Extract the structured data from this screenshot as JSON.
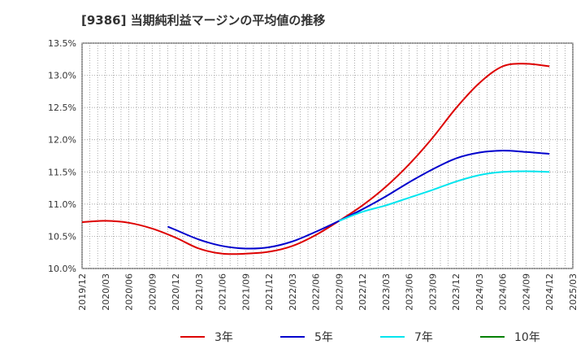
{
  "title": "[9386]  当期純利益マージンの平均値の推移",
  "chart_data": {
    "type": "line",
    "title": "[9386]  当期純利益マージンの平均値の推移",
    "xlabel": "",
    "ylabel": "",
    "ylim": [
      10.0,
      13.5
    ],
    "y_ticks": [
      "10.0%",
      "10.5%",
      "11.0%",
      "11.5%",
      "12.0%",
      "12.5%",
      "13.0%",
      "13.5%"
    ],
    "x_ticks": [
      "2019/12",
      "2020/03",
      "2020/06",
      "2020/09",
      "2020/12",
      "2021/03",
      "2021/06",
      "2021/09",
      "2021/12",
      "2022/03",
      "2022/06",
      "2022/09",
      "2022/12",
      "2023/03",
      "2023/06",
      "2023/09",
      "2023/12",
      "2024/03",
      "2024/06",
      "2024/09",
      "2024/12",
      "2025/03"
    ],
    "grid": true,
    "legend_position": "bottom",
    "series": [
      {
        "name": "3年",
        "color": "#dd0000",
        "points": [
          [
            "2019/12",
            10.72
          ],
          [
            "2020/03",
            10.74
          ],
          [
            "2020/06",
            10.71
          ],
          [
            "2020/09",
            10.62
          ],
          [
            "2020/12",
            10.48
          ],
          [
            "2021/03",
            10.31
          ],
          [
            "2021/06",
            10.23
          ],
          [
            "2021/09",
            10.23
          ],
          [
            "2021/12",
            10.26
          ],
          [
            "2022/03",
            10.35
          ],
          [
            "2022/06",
            10.52
          ],
          [
            "2022/09",
            10.74
          ],
          [
            "2022/12",
            10.98
          ],
          [
            "2023/03",
            11.27
          ],
          [
            "2023/06",
            11.62
          ],
          [
            "2023/09",
            12.03
          ],
          [
            "2023/12",
            12.49
          ],
          [
            "2024/03",
            12.88
          ],
          [
            "2024/06",
            13.14
          ],
          [
            "2024/09",
            13.18
          ],
          [
            "2024/12",
            13.14
          ]
        ]
      },
      {
        "name": "5年",
        "color": "#0000cc",
        "points": [
          [
            "2020/11",
            10.65
          ],
          [
            "2020/12",
            10.6
          ],
          [
            "2021/03",
            10.45
          ],
          [
            "2021/06",
            10.35
          ],
          [
            "2021/09",
            10.31
          ],
          [
            "2021/12",
            10.33
          ],
          [
            "2022/03",
            10.42
          ],
          [
            "2022/06",
            10.57
          ],
          [
            "2022/09",
            10.74
          ],
          [
            "2022/12",
            10.92
          ],
          [
            "2023/03",
            11.12
          ],
          [
            "2023/06",
            11.34
          ],
          [
            "2023/09",
            11.54
          ],
          [
            "2023/12",
            11.71
          ],
          [
            "2024/03",
            11.8
          ],
          [
            "2024/06",
            11.83
          ],
          [
            "2024/09",
            11.81
          ],
          [
            "2024/12",
            11.78
          ]
        ]
      },
      {
        "name": "7年",
        "color": "#00e5ee",
        "points": [
          [
            "2022/09",
            10.74
          ],
          [
            "2022/12",
            10.88
          ],
          [
            "2023/03",
            10.98
          ],
          [
            "2023/06",
            11.1
          ],
          [
            "2023/09",
            11.22
          ],
          [
            "2023/12",
            11.35
          ],
          [
            "2024/03",
            11.45
          ],
          [
            "2024/06",
            11.5
          ],
          [
            "2024/09",
            11.51
          ],
          [
            "2024/12",
            11.5
          ]
        ]
      },
      {
        "name": "10年",
        "color": "#008000",
        "points": []
      }
    ]
  }
}
